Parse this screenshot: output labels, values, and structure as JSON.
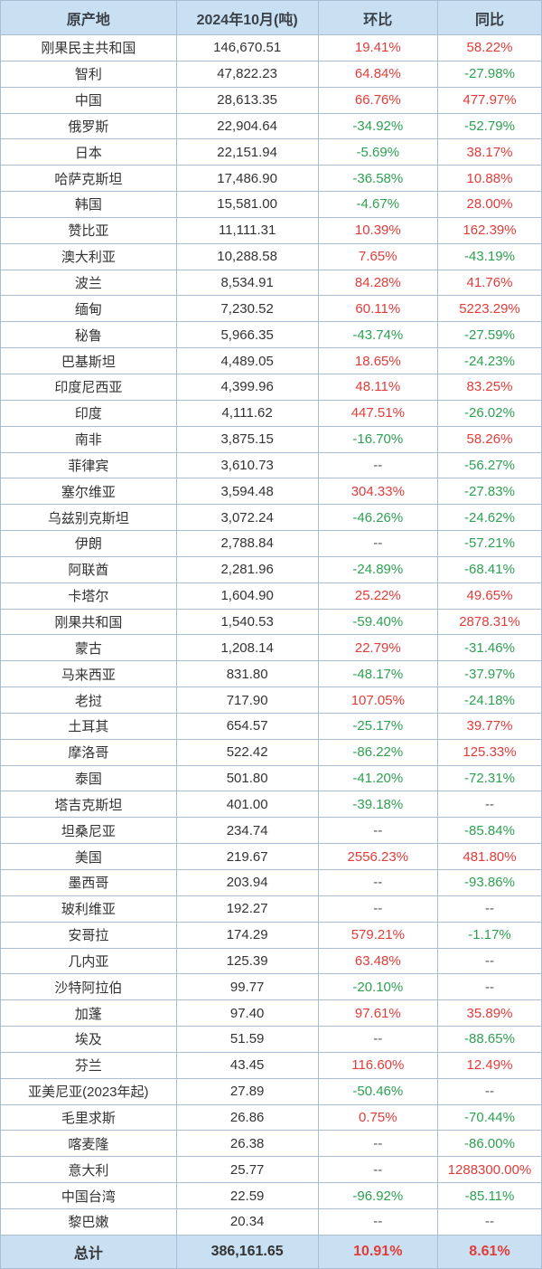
{
  "colors": {
    "header_bg": "#c9e0f2",
    "header_text": "#3b4149",
    "border": "#a9bed2",
    "body_text": "#333333",
    "red_up": "#e23c39",
    "green_down": "#2ea052",
    "dash": "#555555"
  },
  "chart_data": {
    "type": "table",
    "columns": [
      "原产地",
      "2024年10月(吨)",
      "环比",
      "同比"
    ],
    "rows": [
      {
        "origin": "刚果民主共和国",
        "value": "146,670.51",
        "mom": "19.41%",
        "mom_color": "red",
        "yoy": "58.22%",
        "yoy_color": "red"
      },
      {
        "origin": "智利",
        "value": "47,822.23",
        "mom": "64.84%",
        "mom_color": "red",
        "yoy": "-27.98%",
        "yoy_color": "green"
      },
      {
        "origin": "中国",
        "value": "28,613.35",
        "mom": "66.76%",
        "mom_color": "red",
        "yoy": "477.97%",
        "yoy_color": "red"
      },
      {
        "origin": "俄罗斯",
        "value": "22,904.64",
        "mom": "-34.92%",
        "mom_color": "green",
        "yoy": "-52.79%",
        "yoy_color": "green"
      },
      {
        "origin": "日本",
        "value": "22,151.94",
        "mom": "-5.69%",
        "mom_color": "green",
        "yoy": "38.17%",
        "yoy_color": "red"
      },
      {
        "origin": "哈萨克斯坦",
        "value": "17,486.90",
        "mom": "-36.58%",
        "mom_color": "green",
        "yoy": "10.88%",
        "yoy_color": "red"
      },
      {
        "origin": "韩国",
        "value": "15,581.00",
        "mom": "-4.67%",
        "mom_color": "green",
        "yoy": "28.00%",
        "yoy_color": "red"
      },
      {
        "origin": "赞比亚",
        "value": "11,111.31",
        "mom": "10.39%",
        "mom_color": "red",
        "yoy": "162.39%",
        "yoy_color": "red"
      },
      {
        "origin": "澳大利亚",
        "value": "10,288.58",
        "mom": "7.65%",
        "mom_color": "red",
        "yoy": "-43.19%",
        "yoy_color": "green"
      },
      {
        "origin": "波兰",
        "value": "8,534.91",
        "mom": "84.28%",
        "mom_color": "red",
        "yoy": "41.76%",
        "yoy_color": "red"
      },
      {
        "origin": "缅甸",
        "value": "7,230.52",
        "mom": "60.11%",
        "mom_color": "red",
        "yoy": "5223.29%",
        "yoy_color": "red"
      },
      {
        "origin": "秘鲁",
        "value": "5,966.35",
        "mom": "-43.74%",
        "mom_color": "green",
        "yoy": "-27.59%",
        "yoy_color": "green"
      },
      {
        "origin": "巴基斯坦",
        "value": "4,489.05",
        "mom": "18.65%",
        "mom_color": "red",
        "yoy": "-24.23%",
        "yoy_color": "green"
      },
      {
        "origin": "印度尼西亚",
        "value": "4,399.96",
        "mom": "48.11%",
        "mom_color": "red",
        "yoy": "83.25%",
        "yoy_color": "red"
      },
      {
        "origin": "印度",
        "value": "4,111.62",
        "mom": "447.51%",
        "mom_color": "red",
        "yoy": "-26.02%",
        "yoy_color": "green"
      },
      {
        "origin": "南非",
        "value": "3,875.15",
        "mom": "-16.70%",
        "mom_color": "green",
        "yoy": "58.26%",
        "yoy_color": "red"
      },
      {
        "origin": "菲律宾",
        "value": "3,610.73",
        "mom": "--",
        "mom_color": "dash",
        "yoy": "-56.27%",
        "yoy_color": "green"
      },
      {
        "origin": "塞尔维亚",
        "value": "3,594.48",
        "mom": "304.33%",
        "mom_color": "red",
        "yoy": "-27.83%",
        "yoy_color": "green"
      },
      {
        "origin": "乌兹别克斯坦",
        "value": "3,072.24",
        "mom": "-46.26%",
        "mom_color": "green",
        "yoy": "-24.62%",
        "yoy_color": "green"
      },
      {
        "origin": "伊朗",
        "value": "2,788.84",
        "mom": "--",
        "mom_color": "dash",
        "yoy": "-57.21%",
        "yoy_color": "green"
      },
      {
        "origin": "阿联酋",
        "value": "2,281.96",
        "mom": "-24.89%",
        "mom_color": "green",
        "yoy": "-68.41%",
        "yoy_color": "green"
      },
      {
        "origin": "卡塔尔",
        "value": "1,604.90",
        "mom": "25.22%",
        "mom_color": "red",
        "yoy": "49.65%",
        "yoy_color": "red"
      },
      {
        "origin": "刚果共和国",
        "value": "1,540.53",
        "mom": "-59.40%",
        "mom_color": "green",
        "yoy": "2878.31%",
        "yoy_color": "red"
      },
      {
        "origin": "蒙古",
        "value": "1,208.14",
        "mom": "22.79%",
        "mom_color": "red",
        "yoy": "-31.46%",
        "yoy_color": "green"
      },
      {
        "origin": "马来西亚",
        "value": "831.80",
        "mom": "-48.17%",
        "mom_color": "green",
        "yoy": "-37.97%",
        "yoy_color": "green"
      },
      {
        "origin": "老挝",
        "value": "717.90",
        "mom": "107.05%",
        "mom_color": "red",
        "yoy": "-24.18%",
        "yoy_color": "green"
      },
      {
        "origin": "土耳其",
        "value": "654.57",
        "mom": "-25.17%",
        "mom_color": "green",
        "yoy": "39.77%",
        "yoy_color": "red"
      },
      {
        "origin": "摩洛哥",
        "value": "522.42",
        "mom": "-86.22%",
        "mom_color": "green",
        "yoy": "125.33%",
        "yoy_color": "red"
      },
      {
        "origin": "泰国",
        "value": "501.80",
        "mom": "-41.20%",
        "mom_color": "green",
        "yoy": "-72.31%",
        "yoy_color": "green"
      },
      {
        "origin": "塔吉克斯坦",
        "value": "401.00",
        "mom": "-39.18%",
        "mom_color": "green",
        "yoy": "--",
        "yoy_color": "dash"
      },
      {
        "origin": "坦桑尼亚",
        "value": "234.74",
        "mom": "--",
        "mom_color": "dash",
        "yoy": "-85.84%",
        "yoy_color": "green"
      },
      {
        "origin": "美国",
        "value": "219.67",
        "mom": "2556.23%",
        "mom_color": "red",
        "yoy": "481.80%",
        "yoy_color": "red"
      },
      {
        "origin": "墨西哥",
        "value": "203.94",
        "mom": "--",
        "mom_color": "dash",
        "yoy": "-93.86%",
        "yoy_color": "green"
      },
      {
        "origin": "玻利维亚",
        "value": "192.27",
        "mom": "--",
        "mom_color": "dash",
        "yoy": "--",
        "yoy_color": "dash"
      },
      {
        "origin": "安哥拉",
        "value": "174.29",
        "mom": "579.21%",
        "mom_color": "red",
        "yoy": "-1.17%",
        "yoy_color": "green"
      },
      {
        "origin": "几内亚",
        "value": "125.39",
        "mom": "63.48%",
        "mom_color": "red",
        "yoy": "--",
        "yoy_color": "dash"
      },
      {
        "origin": "沙特阿拉伯",
        "value": "99.77",
        "mom": "-20.10%",
        "mom_color": "green",
        "yoy": "--",
        "yoy_color": "dash"
      },
      {
        "origin": "加蓬",
        "value": "97.40",
        "mom": "97.61%",
        "mom_color": "red",
        "yoy": "35.89%",
        "yoy_color": "red"
      },
      {
        "origin": "埃及",
        "value": "51.59",
        "mom": "--",
        "mom_color": "dash",
        "yoy": "-88.65%",
        "yoy_color": "green"
      },
      {
        "origin": "芬兰",
        "value": "43.45",
        "mom": "116.60%",
        "mom_color": "red",
        "yoy": "12.49%",
        "yoy_color": "red"
      },
      {
        "origin": "亚美尼亚(2023年起)",
        "value": "27.89",
        "mom": "-50.46%",
        "mom_color": "green",
        "yoy": "--",
        "yoy_color": "dash"
      },
      {
        "origin": "毛里求斯",
        "value": "26.86",
        "mom": "0.75%",
        "mom_color": "red",
        "yoy": "-70.44%",
        "yoy_color": "green"
      },
      {
        "origin": "喀麦隆",
        "value": "26.38",
        "mom": "--",
        "mom_color": "dash",
        "yoy": "-86.00%",
        "yoy_color": "green"
      },
      {
        "origin": "意大利",
        "value": "25.77",
        "mom": "--",
        "mom_color": "dash",
        "yoy": "1288300.00%",
        "yoy_color": "red"
      },
      {
        "origin": "中国台湾",
        "value": "22.59",
        "mom": "-96.92%",
        "mom_color": "green",
        "yoy": "-85.11%",
        "yoy_color": "green"
      },
      {
        "origin": "黎巴嫩",
        "value": "20.34",
        "mom": "--",
        "mom_color": "dash",
        "yoy": "--",
        "yoy_color": "dash"
      }
    ],
    "total_row": {
      "origin": "总计",
      "value": "386,161.65",
      "mom": "10.91%",
      "mom_color": "red",
      "yoy": "8.61%",
      "yoy_color": "red"
    }
  }
}
